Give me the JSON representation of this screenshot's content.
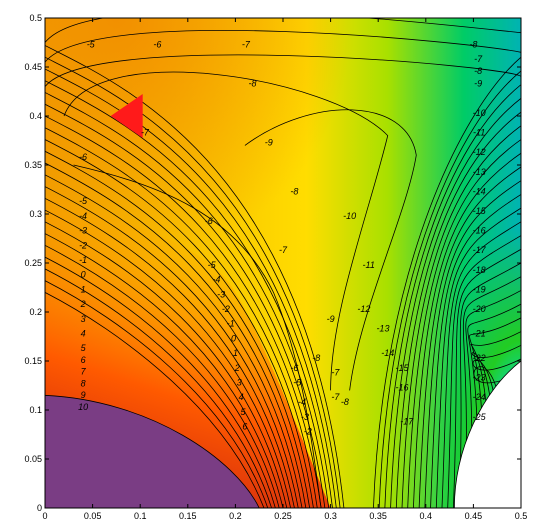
{
  "chart_data": {
    "type": "heatmap",
    "subtype": "filled contour plot",
    "title": "",
    "xlabel": "",
    "ylabel": "",
    "xlim": [
      0,
      0.5
    ],
    "ylim": [
      0,
      0.5
    ],
    "x_ticks": [
      "0",
      "0.05",
      "0.1",
      "0.15",
      "0.2",
      "0.25",
      "0.3",
      "0.35",
      "0.4",
      "0.45",
      "0.5"
    ],
    "y_ticks": [
      "0",
      "0.05",
      "0.1",
      "0.15",
      "0.2",
      "0.25",
      "0.3",
      "0.35",
      "0.4",
      "0.45",
      "0.5"
    ],
    "grid": false,
    "legend": "none",
    "colormap": [
      "#7a3b8a",
      "#d01010",
      "#ff8800",
      "#ffee00",
      "#22cc22",
      "#00e5e5",
      "#3d3dbf"
    ],
    "low_region_color": "#7a3d84",
    "marker": {
      "shape": "triangle-left",
      "color": "#ff1a1a",
      "x": 0.09,
      "y": 0.4
    },
    "contour_labels": [
      {
        "text": "-5",
        "x": 0.048,
        "y": 0.47
      },
      {
        "text": "-6",
        "x": 0.118,
        "y": 0.47
      },
      {
        "text": "-7",
        "x": 0.211,
        "y": 0.47
      },
      {
        "text": "-8",
        "x": 0.218,
        "y": 0.43
      },
      {
        "text": "-8",
        "x": 0.45,
        "y": 0.47
      },
      {
        "text": "-7",
        "x": 0.455,
        "y": 0.455
      },
      {
        "text": "-8",
        "x": 0.455,
        "y": 0.443
      },
      {
        "text": "-9",
        "x": 0.455,
        "y": 0.43
      },
      {
        "text": "-7",
        "x": 0.105,
        "y": 0.38
      },
      {
        "text": "-6",
        "x": 0.04,
        "y": 0.355
      },
      {
        "text": "-9",
        "x": 0.235,
        "y": 0.37
      },
      {
        "text": "-10",
        "x": 0.456,
        "y": 0.4
      },
      {
        "text": "-11",
        "x": 0.456,
        "y": 0.38
      },
      {
        "text": "-12",
        "x": 0.456,
        "y": 0.36
      },
      {
        "text": "-13",
        "x": 0.456,
        "y": 0.34
      },
      {
        "text": "-14",
        "x": 0.456,
        "y": 0.32
      },
      {
        "text": "-15",
        "x": 0.456,
        "y": 0.3
      },
      {
        "text": "-16",
        "x": 0.456,
        "y": 0.28
      },
      {
        "text": "-17",
        "x": 0.456,
        "y": 0.26
      },
      {
        "text": "-18",
        "x": 0.456,
        "y": 0.24
      },
      {
        "text": "-19",
        "x": 0.456,
        "y": 0.22
      },
      {
        "text": "-20",
        "x": 0.456,
        "y": 0.2
      },
      {
        "text": "-21",
        "x": 0.456,
        "y": 0.175
      },
      {
        "text": "-22",
        "x": 0.456,
        "y": 0.15
      },
      {
        "text": "-23",
        "x": 0.456,
        "y": 0.13
      },
      {
        "text": "-24",
        "x": 0.456,
        "y": 0.11
      },
      {
        "text": "-25",
        "x": 0.456,
        "y": 0.09
      },
      {
        "text": "-5",
        "x": 0.04,
        "y": 0.31
      },
      {
        "text": "-4",
        "x": 0.04,
        "y": 0.295
      },
      {
        "text": "-3",
        "x": 0.04,
        "y": 0.28
      },
      {
        "text": "-2",
        "x": 0.04,
        "y": 0.265
      },
      {
        "text": "-1",
        "x": 0.04,
        "y": 0.25
      },
      {
        "text": "0",
        "x": 0.04,
        "y": 0.235
      },
      {
        "text": "1",
        "x": 0.04,
        "y": 0.22
      },
      {
        "text": "2",
        "x": 0.04,
        "y": 0.205
      },
      {
        "text": "3",
        "x": 0.04,
        "y": 0.19
      },
      {
        "text": "4",
        "x": 0.04,
        "y": 0.175
      },
      {
        "text": "5",
        "x": 0.04,
        "y": 0.16
      },
      {
        "text": "6",
        "x": 0.04,
        "y": 0.148
      },
      {
        "text": "7",
        "x": 0.04,
        "y": 0.136
      },
      {
        "text": "8",
        "x": 0.04,
        "y": 0.124
      },
      {
        "text": "9",
        "x": 0.04,
        "y": 0.112
      },
      {
        "text": "10",
        "x": 0.04,
        "y": 0.1
      },
      {
        "text": "-6",
        "x": 0.172,
        "y": 0.29
      },
      {
        "text": "-7",
        "x": 0.25,
        "y": 0.26
      },
      {
        "text": "-8",
        "x": 0.262,
        "y": 0.32
      },
      {
        "text": "-5",
        "x": 0.175,
        "y": 0.245
      },
      {
        "text": "-4",
        "x": 0.18,
        "y": 0.23
      },
      {
        "text": "-3",
        "x": 0.185,
        "y": 0.215
      },
      {
        "text": "-2",
        "x": 0.19,
        "y": 0.2
      },
      {
        "text": "-1",
        "x": 0.195,
        "y": 0.185
      },
      {
        "text": "0",
        "x": 0.198,
        "y": 0.17
      },
      {
        "text": "1",
        "x": 0.2,
        "y": 0.155
      },
      {
        "text": "2",
        "x": 0.202,
        "y": 0.14
      },
      {
        "text": "3",
        "x": 0.204,
        "y": 0.125
      },
      {
        "text": "4",
        "x": 0.206,
        "y": 0.11
      },
      {
        "text": "5",
        "x": 0.208,
        "y": 0.095
      },
      {
        "text": "6",
        "x": 0.21,
        "y": 0.08
      },
      {
        "text": "-10",
        "x": 0.32,
        "y": 0.295
      },
      {
        "text": "-11",
        "x": 0.34,
        "y": 0.245
      },
      {
        "text": "-12",
        "x": 0.335,
        "y": 0.2
      },
      {
        "text": "-9",
        "x": 0.3,
        "y": 0.19
      },
      {
        "text": "-13",
        "x": 0.355,
        "y": 0.18
      },
      {
        "text": "-14",
        "x": 0.36,
        "y": 0.155
      },
      {
        "text": "-8",
        "x": 0.285,
        "y": 0.15
      },
      {
        "text": "-7",
        "x": 0.305,
        "y": 0.135
      },
      {
        "text": "-6",
        "x": 0.262,
        "y": 0.14
      },
      {
        "text": "-5",
        "x": 0.265,
        "y": 0.125
      },
      {
        "text": "-4",
        "x": 0.27,
        "y": 0.105
      },
      {
        "text": "-3",
        "x": 0.273,
        "y": 0.09
      },
      {
        "text": "-2",
        "x": 0.276,
        "y": 0.075
      },
      {
        "text": "-15",
        "x": 0.375,
        "y": 0.14
      },
      {
        "text": "-16",
        "x": 0.375,
        "y": 0.12
      },
      {
        "text": "-7",
        "x": 0.305,
        "y": 0.11
      },
      {
        "text": "-8",
        "x": 0.315,
        "y": 0.105
      },
      {
        "text": "-17",
        "x": 0.38,
        "y": 0.085
      }
    ]
  }
}
